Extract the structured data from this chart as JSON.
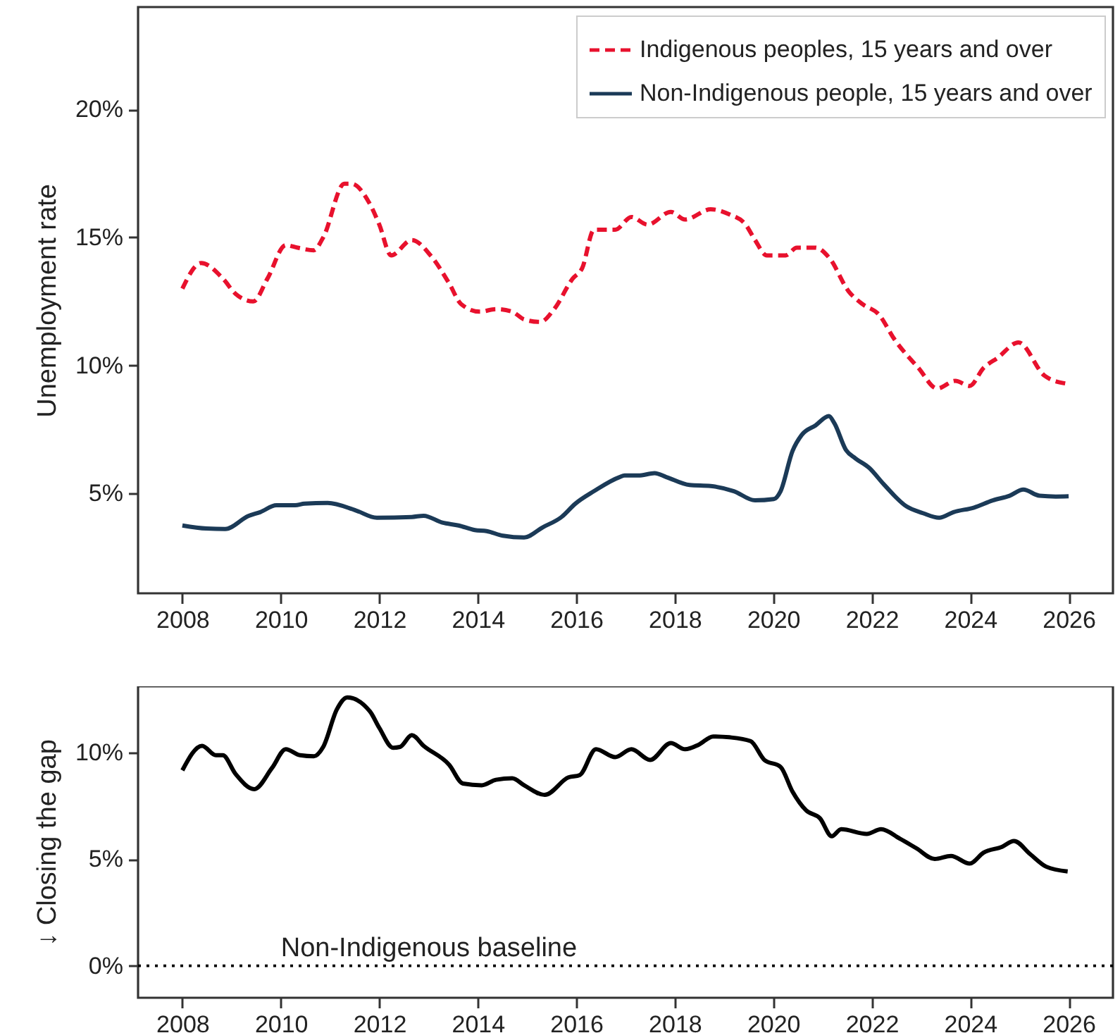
{
  "chart_data": [
    {
      "type": "line",
      "ylabel": "Unemployment rate",
      "xlim": [
        2007.1,
        2026.9
      ],
      "ylim": [
        1.1,
        24.0
      ],
      "xticks": [
        2008,
        2010,
        2012,
        2014,
        2016,
        2018,
        2020,
        2022,
        2024,
        2026
      ],
      "yticks": [
        {
          "value": 5,
          "label": "5%"
        },
        {
          "value": 10,
          "label": "10%"
        },
        {
          "value": 15,
          "label": "15%"
        },
        {
          "value": 20,
          "label": "20%"
        }
      ],
      "legend": "top right",
      "series": [
        {
          "name": "Indigenous peoples, 15 years and over",
          "color": "#e8112d",
          "line_style": "dashed",
          "x": [
            2008.0,
            2008.38,
            2008.82,
            2009.08,
            2009.44,
            2009.73,
            2010.1,
            2010.34,
            2010.67,
            2010.86,
            2011.29,
            2011.43,
            2011.81,
            2012.0,
            2012.24,
            2012.66,
            2013.04,
            2013.42,
            2013.66,
            2014.04,
            2014.37,
            2014.7,
            2014.94,
            2015.27,
            2015.55,
            2015.93,
            2016.12,
            2016.36,
            2016.79,
            2017.12,
            2017.45,
            2017.92,
            2018.21,
            2018.73,
            2019.11,
            2019.44,
            2019.63,
            2019.87,
            2020.25,
            2020.48,
            2020.86,
            2021.14,
            2021.53,
            2021.81,
            2022.14,
            2022.47,
            2022.95,
            2023.33,
            2023.7,
            2023.99,
            2024.27,
            2024.56,
            2024.98,
            2025.51,
            2025.93
          ],
          "values": [
            13.0,
            14.0,
            13.4,
            12.8,
            12.5,
            13.4,
            14.7,
            14.6,
            14.5,
            15.0,
            17.1,
            17.1,
            16.3,
            15.5,
            14.3,
            14.9,
            14.3,
            13.2,
            12.4,
            12.1,
            12.2,
            12.1,
            11.8,
            11.7,
            12.2,
            13.4,
            13.8,
            15.3,
            15.3,
            15.8,
            15.5,
            16.0,
            15.7,
            16.1,
            15.9,
            15.5,
            14.9,
            14.3,
            14.3,
            14.6,
            14.6,
            14.2,
            12.9,
            12.4,
            12.0,
            11.0,
            9.9,
            9.1,
            9.4,
            9.2,
            9.9,
            10.3,
            10.9,
            9.6,
            9.3
          ]
        },
        {
          "name": "Non-Indigenous people, 15 years and over",
          "color": "#1b3a57",
          "line_style": "solid",
          "x": [
            2008.0,
            2008.49,
            2008.87,
            2009.34,
            2009.58,
            2009.91,
            2010.29,
            2010.48,
            2010.95,
            2011.52,
            2011.95,
            2012.66,
            2012.9,
            2013.28,
            2013.61,
            2013.94,
            2014.18,
            2014.51,
            2014.94,
            2015.32,
            2015.7,
            2015.98,
            2016.36,
            2016.88,
            2016.98,
            2017.26,
            2017.59,
            2017.83,
            2018.3,
            2018.73,
            2019.2,
            2019.63,
            2020.01,
            2020.15,
            2020.39,
            2020.58,
            2020.86,
            2021.13,
            2021.24,
            2021.48,
            2021.67,
            2021.95,
            2022.24,
            2022.71,
            2023.04,
            2023.37,
            2023.66,
            2024.08,
            2024.46,
            2024.8,
            2025.08,
            2025.41,
            2025.74,
            2026.0
          ],
          "values": [
            3.75,
            3.63,
            3.61,
            4.12,
            4.27,
            4.54,
            4.54,
            4.6,
            4.63,
            4.34,
            4.05,
            4.08,
            4.13,
            3.86,
            3.75,
            3.57,
            3.53,
            3.35,
            3.28,
            3.68,
            4.08,
            4.6,
            5.09,
            5.64,
            5.7,
            5.7,
            5.79,
            5.64,
            5.33,
            5.29,
            5.09,
            4.73,
            4.78,
            5.09,
            6.65,
            7.29,
            7.66,
            8.02,
            7.75,
            6.69,
            6.37,
            6.0,
            5.37,
            4.49,
            4.23,
            4.05,
            4.27,
            4.45,
            4.73,
            4.91,
            5.15,
            4.91,
            4.88,
            4.89
          ]
        }
      ]
    },
    {
      "type": "line",
      "ylabel": "↓ Closing the gap",
      "xlim": [
        2007.1,
        2026.9
      ],
      "ylim": [
        -1.5,
        13.1
      ],
      "xticks": [
        2008,
        2010,
        2012,
        2014,
        2016,
        2018,
        2020,
        2022,
        2024,
        2026
      ],
      "yticks": [
        {
          "value": 0,
          "label": "0%"
        },
        {
          "value": 5,
          "label": "5%"
        },
        {
          "value": 10,
          "label": "10%"
        }
      ],
      "ref_lines": [
        {
          "axis": "y",
          "value": 0,
          "label": "Non-Indigenous baseline",
          "color": "#000000",
          "line_style": "dotted"
        }
      ],
      "series": [
        {
          "color": "#000000",
          "line_style": "solid",
          "x": [
            2008.0,
            2008.4,
            2008.68,
            2008.82,
            2009.08,
            2009.46,
            2009.82,
            2010.1,
            2010.39,
            2010.67,
            2010.86,
            2011.14,
            2011.35,
            2011.81,
            2012.0,
            2012.28,
            2012.42,
            2012.66,
            2012.9,
            2013.42,
            2013.7,
            2014.08,
            2014.37,
            2014.7,
            2014.94,
            2015.36,
            2015.84,
            2016.07,
            2016.4,
            2016.79,
            2017.12,
            2017.5,
            2017.92,
            2018.21,
            2018.49,
            2018.78,
            2019.11,
            2019.54,
            2019.82,
            2020.15,
            2020.39,
            2020.67,
            2020.95,
            2021.19,
            2021.38,
            2021.9,
            2022.19,
            2022.57,
            2022.9,
            2023.28,
            2023.61,
            2023.99,
            2024.27,
            2024.65,
            2024.89,
            2025.22,
            2025.55,
            2025.98
          ],
          "values": [
            9.16,
            10.31,
            9.87,
            9.87,
            8.99,
            8.28,
            9.27,
            10.15,
            9.87,
            9.82,
            10.26,
            12.03,
            12.58,
            11.92,
            11.15,
            10.22,
            10.26,
            10.81,
            10.31,
            9.42,
            8.54,
            8.46,
            8.72,
            8.79,
            8.46,
            8.01,
            8.83,
            8.94,
            10.15,
            9.78,
            10.15,
            9.65,
            10.44,
            10.15,
            10.37,
            10.75,
            10.71,
            10.53,
            9.65,
            9.32,
            8.17,
            7.28,
            6.91,
            6.07,
            6.4,
            6.18,
            6.4,
            5.96,
            5.52,
            5.01,
            5.15,
            4.79,
            5.3,
            5.58,
            5.85,
            5.23,
            4.64,
            4.42
          ]
        }
      ]
    }
  ]
}
